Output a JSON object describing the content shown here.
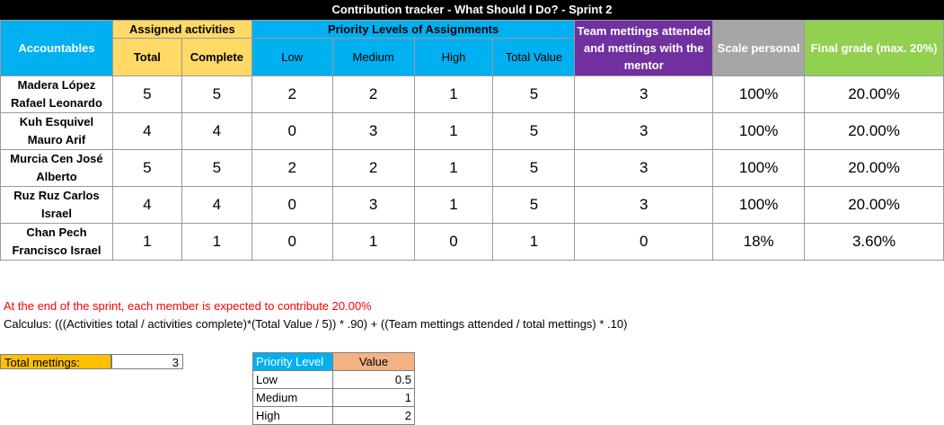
{
  "title": "Contribution tracker - What Should I Do? - Sprint 2",
  "headers": {
    "accountables": "Accountables",
    "assigned": "Assigned activities",
    "total": "Total",
    "complete": "Complete",
    "priority_levels": "Priority Levels of Assignments",
    "low": "Low",
    "medium": "Medium",
    "high": "High",
    "total_value": "Total Value",
    "team_meetings": "Team mettings attended and mettings with the mentor",
    "scale_personal": "Scale personal",
    "final_grade": "Final grade (max. 20%)"
  },
  "rows": [
    {
      "name": "Madera López Rafael Leonardo",
      "total": "5",
      "complete": "5",
      "low": "2",
      "medium": "2",
      "high": "1",
      "total_value": "5",
      "meetings": "3",
      "scale": "100%",
      "grade": "20.00%"
    },
    {
      "name": "Kuh Esquivel Mauro Arif",
      "total": "4",
      "complete": "4",
      "low": "0",
      "medium": "3",
      "high": "1",
      "total_value": "5",
      "meetings": "3",
      "scale": "100%",
      "grade": "20.00%"
    },
    {
      "name": "Murcia Cen José Alberto",
      "total": "5",
      "complete": "5",
      "low": "2",
      "medium": "2",
      "high": "1",
      "total_value": "5",
      "meetings": "3",
      "scale": "100%",
      "grade": "20.00%"
    },
    {
      "name": "Ruz Ruz Carlos Israel",
      "total": "4",
      "complete": "4",
      "low": "0",
      "medium": "3",
      "high": "1",
      "total_value": "5",
      "meetings": "3",
      "scale": "100%",
      "grade": "20.00%"
    },
    {
      "name": "Chan Pech Francisco  Israel",
      "total": "1",
      "complete": "1",
      "low": "0",
      "medium": "1",
      "high": "0",
      "total_value": "1",
      "meetings": "0",
      "scale": "18%",
      "grade": "3.60%"
    }
  ],
  "notes": {
    "expected": "At the end of the sprint, each member is expected to contribute 20.00%",
    "calculus": "Calculus: (((Activities total / activities complete)*(Total Value / 5)) * .90) + ((Team mettings attended / total mettings) * .10)"
  },
  "total_meetings": {
    "label": "Total mettings:",
    "value": "3"
  },
  "priority_table": {
    "header_level": "Priority Level",
    "header_value": "Value",
    "rows": [
      {
        "level": "Low",
        "value": "0.5"
      },
      {
        "level": "Medium",
        "value": "1"
      },
      {
        "level": "High",
        "value": "2"
      }
    ]
  },
  "colors": {
    "blue": "#00b0f0",
    "yellow": "#ffd966",
    "purple": "#7030a0",
    "gray": "#a6a6a6",
    "green": "#92d050",
    "orange": "#ffc000",
    "salmon": "#f4b183",
    "red": "#ff0000"
  }
}
